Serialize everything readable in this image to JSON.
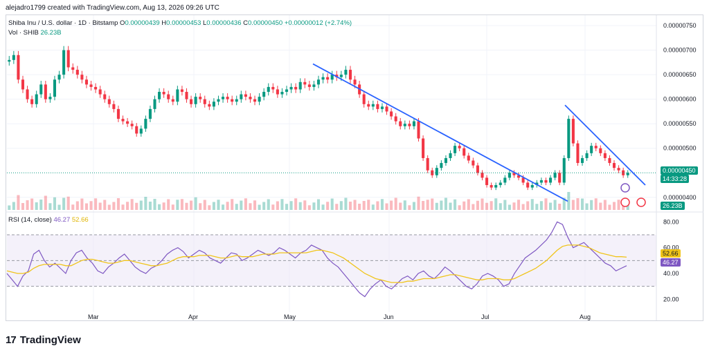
{
  "credit": "alejadro1799 created with TradingView.com, Aug 13, 2026 09:26 UTC",
  "legend": {
    "symbol": "Shiba Inu / U.S. dollar · 1D · Bitstamp",
    "o_label": "O",
    "o": "0.00000439",
    "h_label": "H",
    "h": "0.00000453",
    "l_label": "L",
    "l": "0.00000436",
    "c_label": "C",
    "c": "0.00000450",
    "change": "+0.00000012 (+2.74%)"
  },
  "volume": {
    "label": "Vol · SHIB",
    "value": "26.23B"
  },
  "rsi": {
    "label": "RSI (14, close)",
    "value": "46.27",
    "ma": "52.66"
  },
  "tags": {
    "price": "0.00000450",
    "countdown": "14:33:28",
    "volume": "26.23B",
    "rsi": "46.27",
    "rsi_ma": "52.66"
  },
  "brand": {
    "logo": "17",
    "name": "TradingView"
  },
  "colors": {
    "up": "#089981",
    "down": "#f23645",
    "trend": "#2962ff",
    "rsi": "#7e57c2",
    "rsi_ma": "#f0c419",
    "rsi_band": "#ede7f6"
  },
  "chart_data": [
    {
      "type": "candlestick",
      "title": "Shiba Inu / U.S. dollar · 1D · Bitstamp",
      "x_months": [
        "Mar",
        "Apr",
        "May",
        "Jun",
        "Jul",
        "Aug"
      ],
      "y_ticks": [
        "0.00000750",
        "0.00000700",
        "0.00000650",
        "0.00000600",
        "0.00000550",
        "0.00000500",
        "0.00000400"
      ],
      "ylim": [
        3.8e-06,
        7.6e-06
      ],
      "close_approx": [
        6.8e-06,
        6.9e-06,
        6.4e-06,
        6.2e-06,
        6e-06,
        5.9e-06,
        6.1e-06,
        6.3e-06,
        6e-06,
        6.05e-06,
        6.4e-06,
        6.5e-06,
        7e-06,
        6.65e-06,
        6.6e-06,
        6.5e-06,
        6.4e-06,
        6.3e-06,
        6.25e-06,
        6.2e-06,
        6.1e-06,
        6e-06,
        5.9e-06,
        5.8e-06,
        5.6e-06,
        5.55e-06,
        5.5e-06,
        5.45e-06,
        5.3e-06,
        5.4e-06,
        5.6e-06,
        5.8e-06,
        6e-06,
        6.15e-06,
        6.1e-06,
        6e-06,
        5.95e-06,
        6.2e-06,
        6.15e-06,
        6e-06,
        5.9e-06,
        6.05e-06,
        6e-06,
        5.9e-06,
        5.85e-06,
        5.95e-06,
        6e-06,
        6.05e-06,
        6e-06,
        5.95e-06,
        6e-06,
        6.1e-06,
        6.05e-06,
        6e-06,
        5.95e-06,
        6.05e-06,
        6.15e-06,
        6.25e-06,
        6.2e-06,
        6.1e-06,
        6.15e-06,
        6.2e-06,
        6.25e-06,
        6.2e-06,
        6.35e-06,
        6.3e-06,
        6.25e-06,
        6.3e-06,
        6.4e-06,
        6.45e-06,
        6.4e-06,
        6.5e-06,
        6.45e-06,
        6.5e-06,
        6.6e-06,
        6.4e-06,
        6.3e-06,
        6.1e-06,
        5.9e-06,
        5.85e-06,
        5.9e-06,
        5.8e-06,
        5.85e-06,
        5.75e-06,
        5.65e-06,
        5.55e-06,
        5.45e-06,
        5.5e-06,
        5.45e-06,
        5.55e-06,
        5.2e-06,
        4.8e-06,
        4.55e-06,
        4.45e-06,
        4.6e-06,
        4.7e-06,
        4.8e-06,
        4.9e-06,
        5.05e-06,
        5e-06,
        4.85e-06,
        4.75e-06,
        4.65e-06,
        4.5e-06,
        4.4e-06,
        4.25e-06,
        4.2e-06,
        4.25e-06,
        4.3e-06,
        4.4e-06,
        4.5e-06,
        4.45e-06,
        4.4e-06,
        4.3e-06,
        4.2e-06,
        4.25e-06,
        4.3e-06,
        4.35e-06,
        4.3e-06,
        4.4e-06,
        4.5e-06,
        4.3e-06,
        4.8e-06,
        5.6e-06,
        5.1e-06,
        4.7e-06,
        4.8e-06,
        4.9e-06,
        5.05e-06,
        5e-06,
        4.9e-06,
        4.8e-06,
        4.7e-06,
        4.6e-06,
        4.55e-06,
        4.45e-06,
        4.5e-06
      ]
    },
    {
      "type": "line",
      "title": "RSI (14, close)",
      "y_ticks": [
        "80.00",
        "60.00",
        "40.00",
        "20.00"
      ],
      "ylim": [
        10,
        85
      ],
      "bands": [
        30,
        70
      ],
      "series": [
        {
          "name": "RSI",
          "values": [
            40,
            35,
            30,
            38,
            42,
            55,
            58,
            50,
            45,
            48,
            44,
            40,
            50,
            56,
            58,
            52,
            48,
            42,
            40,
            45,
            48,
            52,
            55,
            50,
            45,
            42,
            40,
            44,
            46,
            50,
            55,
            58,
            60,
            57,
            52,
            55,
            58,
            56,
            52,
            50,
            48,
            52,
            56,
            55,
            50,
            52,
            55,
            58,
            56,
            54,
            56,
            60,
            58,
            55,
            52,
            56,
            58,
            62,
            60,
            58,
            52,
            48,
            45,
            40,
            35,
            30,
            25,
            22,
            28,
            32,
            35,
            30,
            28,
            32,
            36,
            38,
            35,
            40,
            42,
            38,
            36,
            40,
            45,
            42,
            38,
            34,
            30,
            28,
            32,
            38,
            40,
            38,
            35,
            30,
            32,
            40,
            46,
            52,
            55,
            58,
            62,
            66,
            72,
            80,
            78,
            68,
            60,
            62,
            64,
            60,
            56,
            52,
            48,
            46,
            42,
            44,
            46
          ]
        },
        {
          "name": "RSI MA",
          "values": [
            42,
            41,
            40,
            40,
            41,
            44,
            46,
            47,
            47,
            47,
            47,
            46,
            46,
            48,
            50,
            51,
            51,
            50,
            49,
            48,
            48,
            49,
            50,
            50,
            49,
            48,
            47,
            46,
            46,
            47,
            48,
            50,
            52,
            53,
            53,
            53,
            54,
            54,
            54,
            53,
            52,
            52,
            53,
            54,
            53,
            53,
            53,
            54,
            55,
            55,
            55,
            56,
            56,
            56,
            56,
            56,
            56,
            57,
            58,
            58,
            57,
            56,
            54,
            52,
            49,
            46,
            43,
            40,
            38,
            36,
            35,
            34,
            33,
            33,
            33,
            34,
            34,
            35,
            36,
            36,
            36,
            37,
            38,
            39,
            39,
            38,
            37,
            36,
            35,
            35,
            36,
            36,
            36,
            35,
            35,
            36,
            38,
            40,
            42,
            44,
            47,
            50,
            54,
            58,
            61,
            62,
            62,
            62,
            61,
            60,
            58,
            56,
            55,
            54,
            53,
            53,
            52.66
          ]
        }
      ]
    }
  ]
}
